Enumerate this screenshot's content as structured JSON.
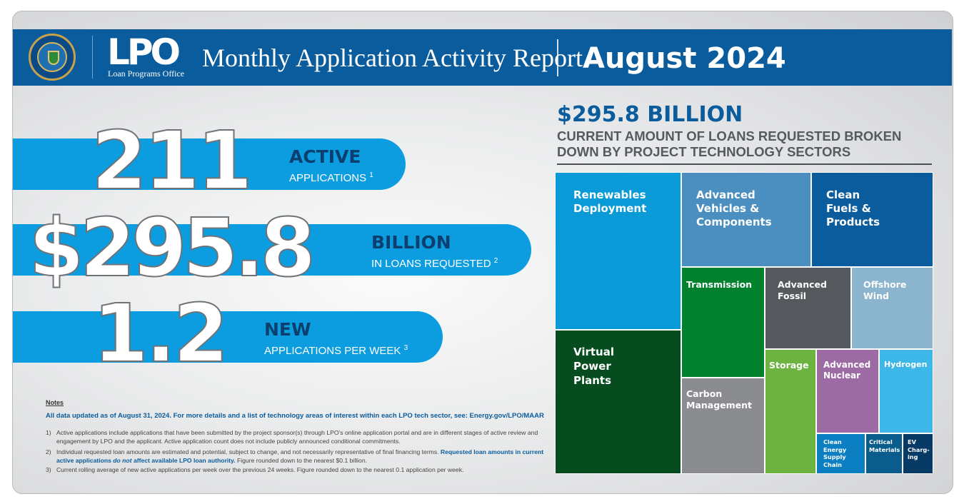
{
  "header": {
    "logo_text": "LPO",
    "logo_subtitle": "Loan Programs Office",
    "title": "Monthly Application Activity Report",
    "month": "August 2024"
  },
  "stats": [
    {
      "value": "211",
      "label": "ACTIVE",
      "sublabel": "APPLICATIONS",
      "footnote": "1"
    },
    {
      "value": "$295.8",
      "label": "BILLION",
      "sublabel": "IN LOANS REQUESTED",
      "footnote": "2"
    },
    {
      "value": "1.2",
      "label": "NEW",
      "sublabel": "APPLICATIONS PER WEEK",
      "footnote": "3"
    }
  ],
  "notes": {
    "heading": "Notes",
    "intro": "All data updated as of August 31, 2024. For more details and a list of technology areas of interest within each LPO tech sector, see: Energy.gov/LPO/MAAR",
    "items": [
      {
        "num": "1)",
        "text": "Active applications include applications that have been submitted by the project sponsor(s) through LPO’s online application portal and are in different stages of active review and engagement by LPO and the applicant. Active application count does not include publicly announced conditional commitments."
      },
      {
        "num": "2)",
        "text_a": "Individual requested loan amounts are estimated and potential, subject to change, and not necessarily representative of final financing terms.",
        "text_b": "Requested loan amounts in current active applications",
        "text_c": "do not",
        "text_d": "affect available LPO loan authority.",
        "text_e": "Figure rounded down to the nearest $0.1 billion."
      },
      {
        "num": "3)",
        "text": "Current rolling average of new active applications per week over the previous 24 weeks. Figure rounded down to the nearest 0.1 application per week."
      }
    ]
  },
  "treemap": {
    "total": "$295.8 BILLION",
    "subtitle": "CURRENT AMOUNT OF LOANS REQUESTED BROKEN DOWN BY PROJECT TECHNOLOGY SECTORS",
    "sectors": [
      {
        "name": "Renewables Deployment",
        "color": "#0b9ad8"
      },
      {
        "name": "Virtual Power Plants",
        "color": "#064c1e"
      },
      {
        "name": "Advanced Vehicles & Components",
        "color": "#4a8fc0"
      },
      {
        "name": "Clean Fuels & Products",
        "color": "#0a5c9c"
      },
      {
        "name": "Transmission",
        "color": "#00812e"
      },
      {
        "name": "Advanced Fossil",
        "color": "#55585d"
      },
      {
        "name": "Offshore Wind",
        "color": "#8bb4cf"
      },
      {
        "name": "Carbon Management",
        "color": "#8a8c90"
      },
      {
        "name": "Storage",
        "color": "#6cb33f"
      },
      {
        "name": "Advanced Nuclear",
        "color": "#9c6ba3"
      },
      {
        "name": "Hydrogen",
        "color": "#3db6e8"
      },
      {
        "name": "Clean Energy Supply Chain",
        "color": "#0b7fc2"
      },
      {
        "name": "Critical Materials",
        "color": "#0a5c8c"
      },
      {
        "name": "EV Charg-ing",
        "color": "#083a66"
      }
    ]
  }
}
